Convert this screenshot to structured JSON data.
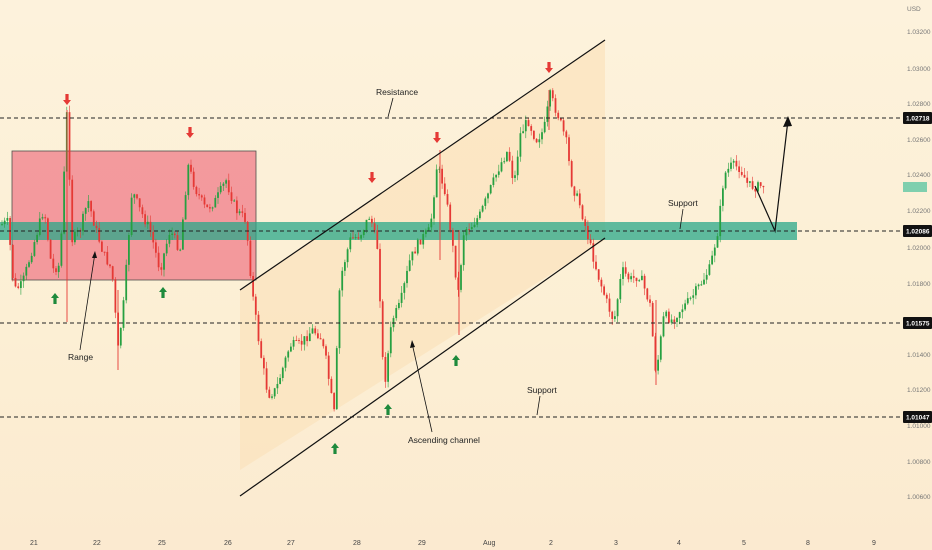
{
  "price_axis": {
    "currency": "USD",
    "ticks": [
      "1.03200",
      "1.03000",
      "1.02800",
      "1.02600",
      "1.02400",
      "1.02200",
      "1.02000",
      "1.01800",
      "1.01400",
      "1.01200",
      "1.01000",
      "1.00800",
      "1.00600"
    ],
    "current_price_badge": "",
    "levels": [
      {
        "value": "1.02718",
        "style": "dark"
      },
      {
        "value": "1.02086",
        "style": "dark"
      },
      {
        "value": "1.01575",
        "style": "dark"
      },
      {
        "value": "1.01047",
        "style": "dark"
      }
    ]
  },
  "time_axis": {
    "labels": [
      "21",
      "22",
      "25",
      "26",
      "27",
      "28",
      "29",
      "Aug",
      "2",
      "3",
      "4",
      "5",
      "8",
      "9"
    ]
  },
  "annotations": {
    "resistance": "Resistance",
    "support_upper": "Support",
    "support_lower": "Support",
    "range": "Range",
    "ascending_channel": "Ascending channel"
  },
  "colors": {
    "bull_candle": "#26a041",
    "bear_candle": "#e53935",
    "range_box": "#f28b93",
    "support_zone": "#2aa88a",
    "channel_fill": "#fbe3bd",
    "arrow_up": "#1e8a3c",
    "arrow_down": "#e53935",
    "current_price": "#7fcfae"
  },
  "signal_arrows": {
    "down": [
      "sell-signal",
      "sell-signal",
      "sell-signal",
      "sell-signal",
      "sell-signal"
    ],
    "up": [
      "buy-signal",
      "buy-signal",
      "buy-signal",
      "buy-signal",
      "buy-signal"
    ]
  }
}
